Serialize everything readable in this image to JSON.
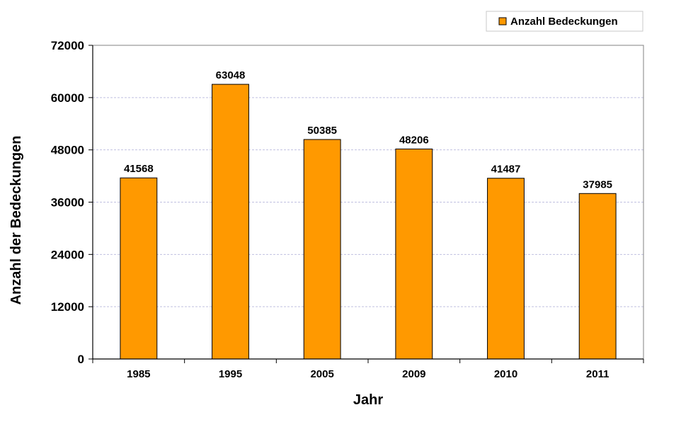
{
  "chart_data": {
    "type": "bar",
    "categories": [
      "1985",
      "1995",
      "2005",
      "2009",
      "2010",
      "2011"
    ],
    "series": [
      {
        "name": "Anzahl Bedeckungen",
        "values": [
          41568,
          63048,
          50385,
          48206,
          41487,
          37985
        ]
      }
    ],
    "data_labels": [
      "41568",
      "63048",
      "50385",
      "48206",
      "41487",
      "37985"
    ],
    "title": "",
    "xlabel": "Jahr",
    "ylabel": "Anzahl der Bedeckungen",
    "ylim": [
      0,
      72000
    ],
    "yticks": [
      0,
      12000,
      24000,
      36000,
      48000,
      60000,
      72000
    ],
    "ytick_labels": [
      "0",
      "12000",
      "24000",
      "36000",
      "48000",
      "60000",
      "72000"
    ],
    "grid": true,
    "legend_position": "top-right",
    "bar_color": "#FF9900",
    "bar_stroke": "#000000",
    "grid_color": "#C0C0E0"
  }
}
